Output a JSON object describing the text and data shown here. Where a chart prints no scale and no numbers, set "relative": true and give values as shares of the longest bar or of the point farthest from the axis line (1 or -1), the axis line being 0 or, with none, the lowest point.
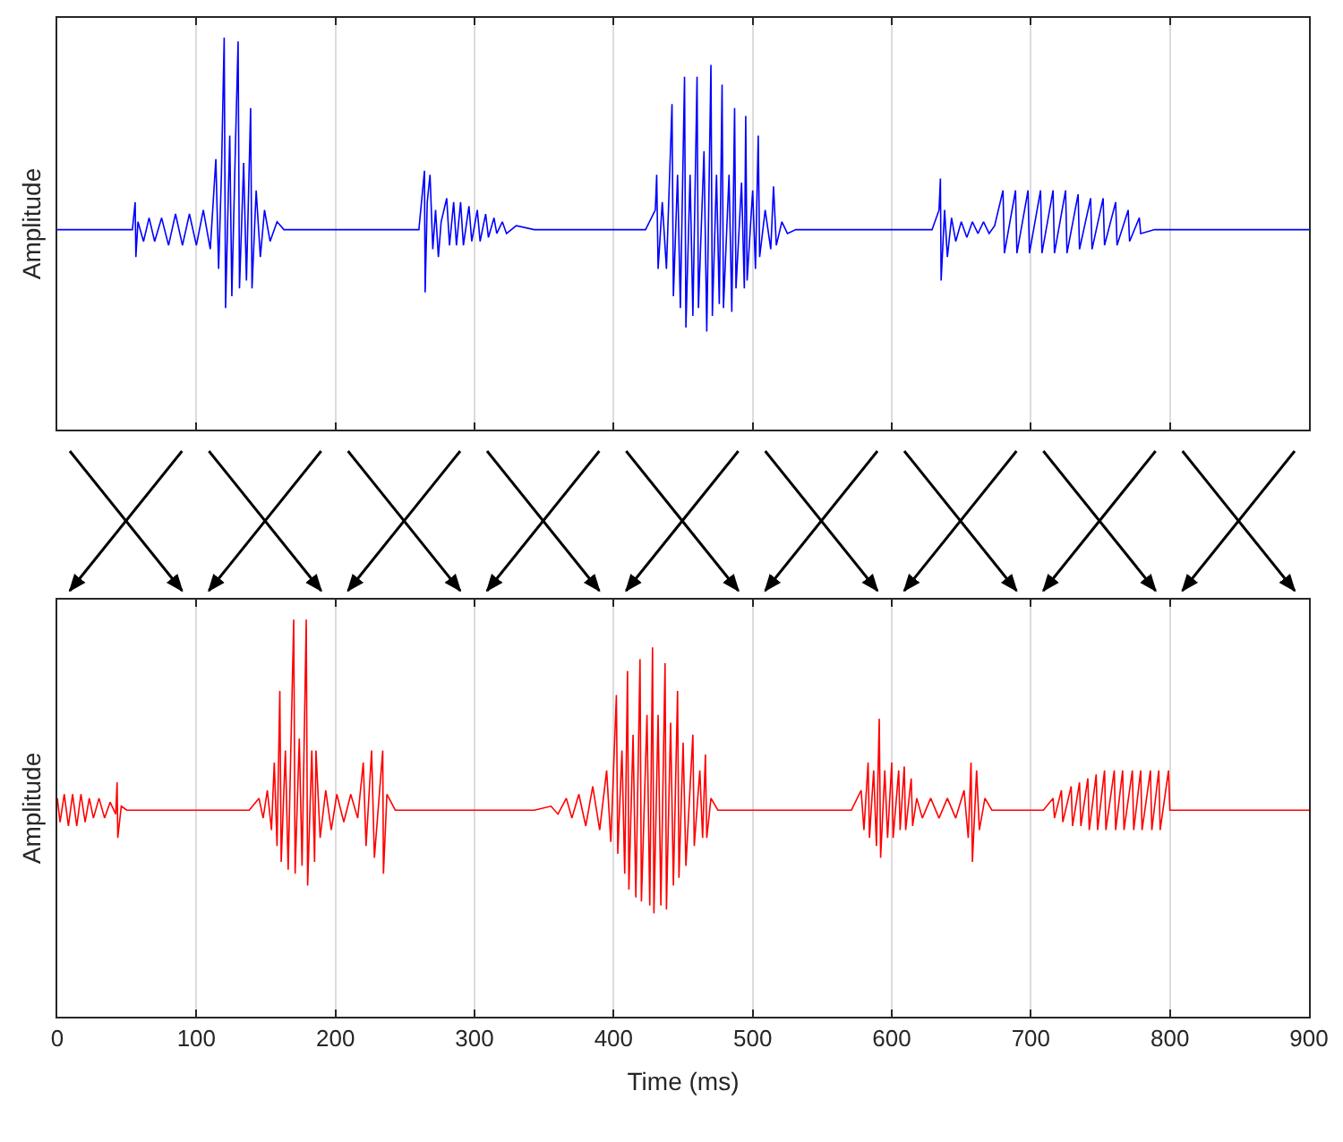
{
  "chart_data": [
    {
      "type": "line",
      "ylabel": "Amplitude",
      "relative": true,
      "xlim": [
        0,
        900
      ],
      "xticks": [
        0,
        100,
        200,
        300,
        400,
        500,
        600,
        700,
        800,
        900
      ],
      "grid": "x",
      "tick_labels": false,
      "marker": "none",
      "line_style": "solid",
      "x": [
        0,
        54,
        56,
        56.5,
        58,
        62,
        66,
        70,
        75,
        80,
        85,
        90,
        95,
        100,
        105,
        110,
        114,
        116,
        118,
        120,
        121,
        124,
        125.5,
        128,
        130,
        131,
        134,
        136,
        139,
        140,
        143,
        146,
        149,
        153,
        158,
        163,
        260,
        264,
        264.5,
        266,
        268,
        270,
        272,
        274,
        276,
        280,
        282,
        285,
        287,
        290,
        292,
        296,
        298,
        302,
        304,
        308,
        310,
        314,
        316,
        320,
        323,
        330,
        343,
        423,
        430,
        431,
        432,
        435,
        438,
        442,
        443,
        446,
        448,
        451,
        452,
        455,
        457,
        460,
        461,
        465,
        467,
        470,
        471,
        474,
        476,
        478,
        479,
        483,
        485,
        487,
        488,
        492,
        494,
        495,
        496,
        500,
        502,
        504,
        505,
        509,
        513,
        515,
        517,
        521,
        525,
        531,
        629,
        634,
        635,
        635.5,
        638,
        640,
        643,
        646,
        650,
        654,
        658,
        662,
        666,
        670,
        674,
        680,
        681,
        689,
        690,
        698,
        699,
        707,
        708,
        716,
        717,
        725,
        726,
        734,
        735,
        743,
        744,
        752,
        753,
        761,
        762,
        770,
        771,
        778,
        779,
        789,
        900
      ],
      "series": [
        {
          "color": "#0000ff",
          "values": [
            0.51,
            0.51,
            0.58,
            0.44,
            0.53,
            0.48,
            0.54,
            0.48,
            0.54,
            0.47,
            0.55,
            0.47,
            0.55,
            0.47,
            0.56,
            0.46,
            0.69,
            0.41,
            0.65,
            1,
            0.31,
            0.75,
            0.34,
            0.71,
            0.99,
            0.36,
            0.68,
            0.38,
            0.82,
            0.36,
            0.61,
            0.44,
            0.56,
            0.48,
            0.53,
            0.51,
            0.51,
            0.66,
            0.35,
            0.58,
            0.65,
            0.46,
            0.56,
            0.44,
            0.53,
            0.59,
            0.47,
            0.58,
            0.47,
            0.58,
            0.47,
            0.57,
            0.48,
            0.56,
            0.48,
            0.55,
            0.49,
            0.54,
            0.5,
            0.53,
            0.5,
            0.52,
            0.51,
            0.51,
            0.56,
            0.65,
            0.41,
            0.58,
            0.41,
            0.83,
            0.34,
            0.65,
            0.31,
            0.9,
            0.26,
            0.65,
            0.29,
            0.9,
            0.31,
            0.71,
            0.25,
            0.93,
            0.29,
            0.65,
            0.32,
            0.88,
            0.31,
            0.65,
            0.3,
            0.82,
            0.36,
            0.63,
            0.36,
            0.8,
            0.38,
            0.61,
            0.41,
            0.75,
            0.44,
            0.56,
            0.46,
            0.62,
            0.47,
            0.53,
            0.5,
            0.51,
            0.51,
            0.56,
            0.64,
            0.38,
            0.56,
            0.44,
            0.54,
            0.48,
            0.53,
            0.49,
            0.53,
            0.5,
            0.53,
            0.5,
            0.52,
            0.61,
            0.45,
            0.61,
            0.45,
            0.61,
            0.45,
            0.61,
            0.45,
            0.61,
            0.45,
            0.61,
            0.45,
            0.6,
            0.46,
            0.59,
            0.46,
            0.59,
            0.47,
            0.58,
            0.47,
            0.56,
            0.48,
            0.54,
            0.5,
            0.51,
            0.51
          ]
        }
      ]
    },
    {
      "type": "line",
      "xlabel": "Time (ms)",
      "ylabel": "Amplitude",
      "relative": true,
      "xlim": [
        0,
        900
      ],
      "xticks": [
        0,
        100,
        200,
        300,
        400,
        500,
        600,
        700,
        800,
        900
      ],
      "grid": "x",
      "tick_labels": "x",
      "marker": "none",
      "line_style": "solid",
      "x": [
        0,
        2,
        5,
        8,
        11,
        14,
        17,
        20,
        23,
        26,
        30,
        34,
        38,
        42,
        43,
        43.5,
        46,
        50,
        138,
        145,
        148,
        151,
        154,
        156,
        158,
        160,
        161,
        164,
        166,
        170,
        171,
        174,
        176,
        179,
        180,
        183,
        185,
        186,
        189,
        193,
        197,
        201,
        206,
        211,
        216,
        220,
        222,
        226,
        228,
        234,
        234.5,
        237,
        243,
        343,
        355,
        360,
        366,
        370,
        375,
        380,
        385,
        390,
        395,
        398,
        402,
        403,
        406,
        408,
        410,
        411,
        414,
        416,
        419,
        420,
        424,
        426,
        428,
        429,
        432,
        434,
        437,
        438,
        441,
        443,
        446,
        447,
        450,
        452,
        457,
        458,
        462,
        464,
        466,
        467,
        470,
        475,
        571,
        578,
        580,
        583,
        584,
        587,
        589,
        591,
        592,
        595,
        597,
        600,
        601,
        605,
        606,
        609,
        610,
        614,
        615,
        618,
        622,
        628,
        634,
        640,
        646,
        652,
        655,
        657,
        658,
        661,
        663,
        667,
        672,
        709,
        716,
        717,
        722,
        723,
        729,
        730,
        735,
        736,
        741,
        742,
        747,
        748,
        753,
        754,
        760,
        761,
        766,
        767,
        773,
        774,
        779,
        780,
        786,
        787,
        792,
        793,
        799,
        800,
        900
      ],
      "series": [
        {
          "color": "#ff0000",
          "values": [
            0.55,
            0.49,
            0.56,
            0.48,
            0.56,
            0.48,
            0.56,
            0.49,
            0.55,
            0.5,
            0.55,
            0.5,
            0.54,
            0.51,
            0.59,
            0.45,
            0.53,
            0.52,
            0.52,
            0.55,
            0.5,
            0.57,
            0.47,
            0.64,
            0.43,
            0.82,
            0.39,
            0.67,
            0.37,
            1,
            0.36,
            0.7,
            0.38,
            1,
            0.33,
            0.67,
            0.39,
            0.67,
            0.45,
            0.57,
            0.47,
            0.56,
            0.49,
            0.56,
            0.5,
            0.64,
            0.43,
            0.67,
            0.4,
            0.67,
            0.36,
            0.56,
            0.52,
            0.52,
            0.53,
            0.51,
            0.55,
            0.5,
            0.56,
            0.48,
            0.58,
            0.47,
            0.62,
            0.44,
            0.81,
            0.41,
            0.67,
            0.36,
            0.87,
            0.32,
            0.71,
            0.3,
            0.9,
            0.29,
            0.76,
            0.28,
            0.93,
            0.26,
            0.76,
            0.28,
            0.89,
            0.27,
            0.74,
            0.33,
            0.82,
            0.35,
            0.69,
            0.38,
            0.71,
            0.43,
            0.62,
            0.45,
            0.66,
            0.45,
            0.55,
            0.52,
            0.52,
            0.57,
            0.47,
            0.64,
            0.45,
            0.62,
            0.43,
            0.75,
            0.4,
            0.62,
            0.45,
            0.64,
            0.45,
            0.62,
            0.47,
            0.63,
            0.47,
            0.6,
            0.48,
            0.55,
            0.5,
            0.55,
            0.5,
            0.55,
            0.5,
            0.57,
            0.45,
            0.64,
            0.39,
            0.62,
            0.47,
            0.55,
            0.52,
            0.52,
            0.55,
            0.5,
            0.57,
            0.49,
            0.58,
            0.48,
            0.59,
            0.48,
            0.6,
            0.47,
            0.61,
            0.47,
            0.62,
            0.47,
            0.62,
            0.47,
            0.62,
            0.47,
            0.62,
            0.47,
            0.62,
            0.47,
            0.62,
            0.47,
            0.62,
            0.47,
            0.62,
            0.52,
            0.52
          ]
        }
      ]
    }
  ]
}
